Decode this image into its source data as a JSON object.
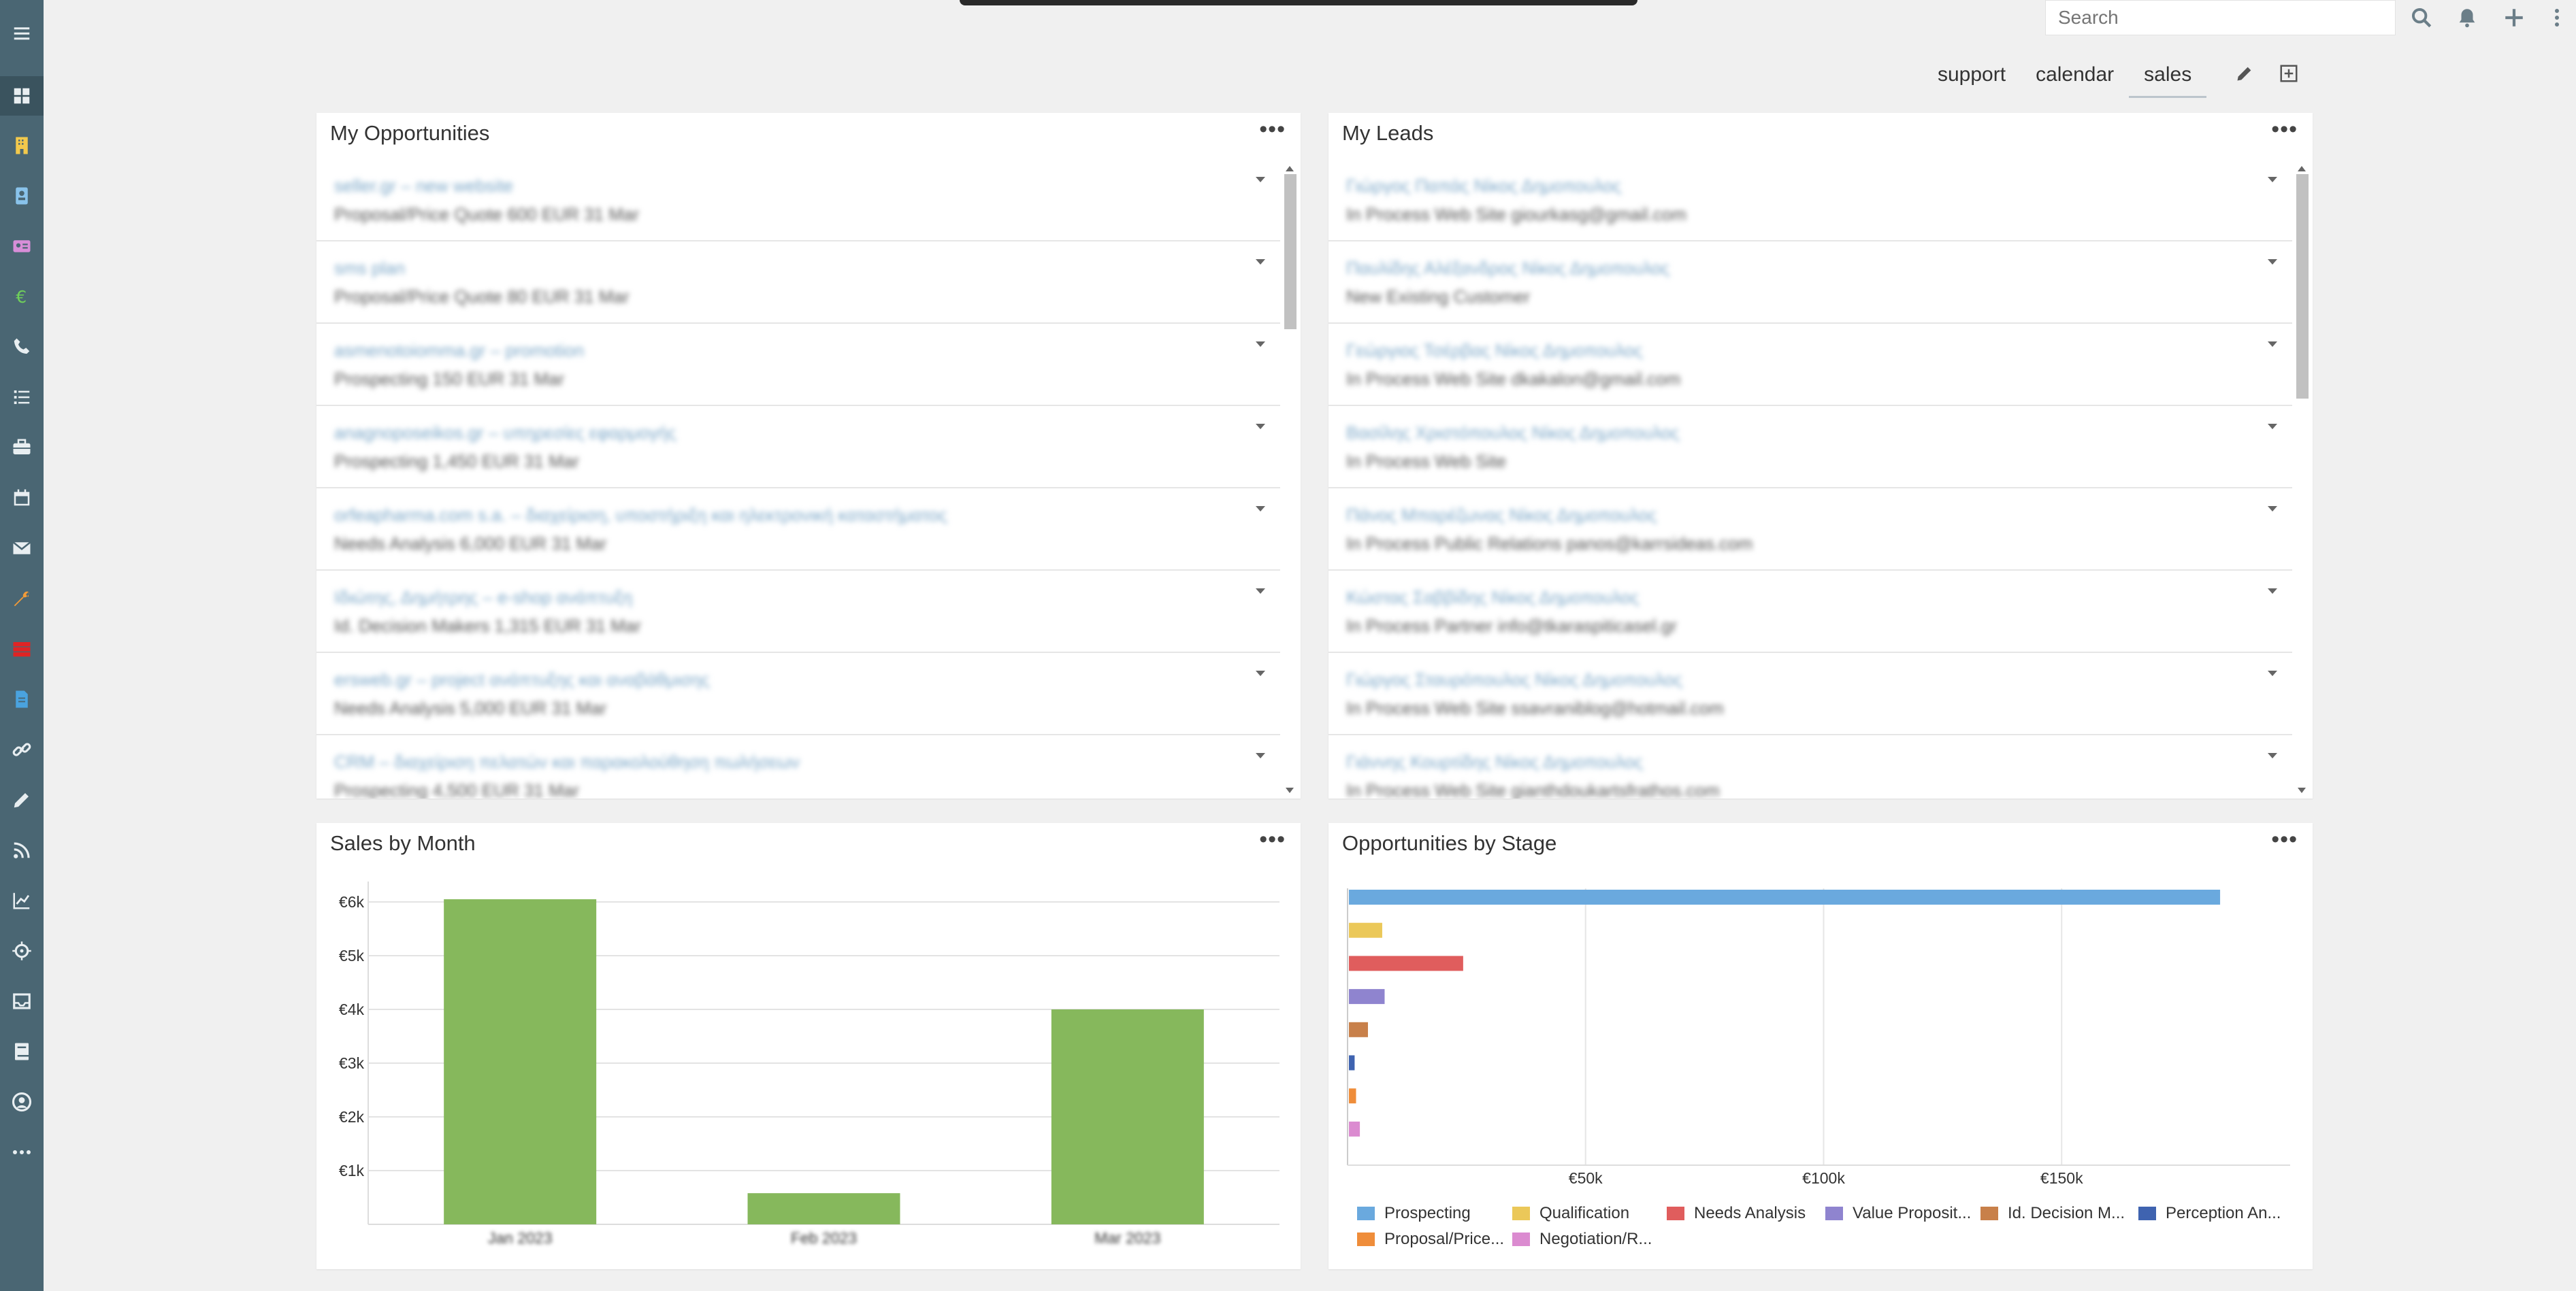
{
  "header": {
    "search_placeholder": "Search",
    "tabs": [
      {
        "label": "support"
      },
      {
        "label": "calendar"
      },
      {
        "label": "sales",
        "active": true
      }
    ]
  },
  "sidebar": {
    "icons": [
      "menu-icon",
      "dashboard-icon",
      "accounts-icon",
      "contacts-icon",
      "leads-icon",
      "opportunities-icon",
      "calls-icon",
      "tasks-icon",
      "cases-icon",
      "calendar-icon",
      "email-icon",
      "tools-icon",
      "stack-icon",
      "documents-icon",
      "link-icon",
      "pencil-icon",
      "feed-icon",
      "chart-icon",
      "target-icon",
      "inbox-icon",
      "book-icon",
      "user-icon",
      "more-icon"
    ],
    "colors": {
      "background": "#4a6673",
      "accounts": "#f2c94c",
      "euro": "#6fcf5a",
      "stack": "#e02424",
      "documents": "#4aa3df",
      "tools": "#f29b38",
      "contacts": "#89c3eb",
      "leads": "#d88ed8"
    }
  },
  "panels": {
    "opportunities": {
      "title": "My Opportunities",
      "rows": [
        {
          "name": "seller.gr – new website",
          "detail": "Proposal/Price Quote   600 EUR   31 Mar"
        },
        {
          "name": "sms plan",
          "detail": "Proposal/Price Quote   80 EUR   31 Mar"
        },
        {
          "name": "asmenotoiomma.gr – promotion",
          "detail": "Prospecting   150 EUR   31 Mar"
        },
        {
          "name": "anagnoposeikos.gr – υπηρεσίες εφαρμογής",
          "detail": "Prospecting   1,450 EUR   31 Mar"
        },
        {
          "name": "orfeapharma.com s.a. – διαχείριση, υποστήριξη και ηλεκτρονική καταστήματος",
          "detail": "Needs Analysis   6,000 EUR   31 Mar"
        },
        {
          "name": "Ιδιώτης, Δημήτρης – e-shop ανάπτυξη",
          "detail": "Id. Decision Makers   1,315 EUR   31 Mar"
        },
        {
          "name": "ersweb.gr – project ανάπτυξης και αναβάθμισης",
          "detail": "Needs Analysis   5,000 EUR   31 Mar"
        },
        {
          "name": "CRM – διαχείριση πελατών και παρακολούθηση πωλήσεων",
          "detail": "Prospecting   4,500 EUR   31 Mar"
        }
      ]
    },
    "leads": {
      "title": "My Leads",
      "rows": [
        {
          "name": "Γιώργος Παπάς    Νίκος Δημοπουλος",
          "detail": "In Process   Web Site   giourkasg@gmail.com"
        },
        {
          "name": "Παυλίδης Αλέξανδρος    Νίκος Δημοπουλος",
          "detail": "New   Existing Customer"
        },
        {
          "name": "Γεώργιος Τσέρβας    Νίκος Δημοπουλος",
          "detail": "In Process   Web Site   dkakalon@gmail.com"
        },
        {
          "name": "Βασίλης Χριστόπουλος    Νίκος Δημοπουλος",
          "detail": "In Process   Web Site"
        },
        {
          "name": "Πάνος Μπαρέζωνας    Νίκος Δημοπουλος",
          "detail": "In Process   Public Relations   panos@karrsideas.com"
        },
        {
          "name": "Κώστας Σαββίδης    Νίκος Δημοπουλος",
          "detail": "In Process   Partner   info@tkaraspiticasel.gr"
        },
        {
          "name": "Γιώργος Σταυρόπουλος    Νίκος Δημοπουλος",
          "detail": "In Process   Web Site   ssavraniblog@hotmail.com"
        },
        {
          "name": "Γιάννης Κουρτίδης    Νίκος Δημοπουλος",
          "detail": "In Process   Web Site   gianthdoukartsfrathos.com"
        }
      ]
    },
    "sales_by_month": {
      "title": "Sales by Month"
    },
    "opps_by_stage": {
      "title": "Opportunities by Stage"
    }
  },
  "chart_data": [
    {
      "type": "bar",
      "title": "Sales by Month",
      "categories": [
        "Jan 2023",
        "Feb 2023",
        "Mar 2023"
      ],
      "values": [
        6050,
        580,
        4000
      ],
      "ylim": [
        0,
        6000
      ],
      "yticks": [
        "€1k",
        "€2k",
        "€3k",
        "€4k",
        "€5k",
        "€6k"
      ],
      "tick_values": [
        1000,
        2000,
        3000,
        4000,
        5000,
        6000
      ],
      "color": "#86b85c",
      "grid": true
    },
    {
      "type": "bar",
      "orientation": "horizontal",
      "title": "Opportunities by Stage",
      "categories": [
        "Prospecting",
        "Qualification",
        "Needs Analysis",
        "Value Proposition",
        "Id. Decision Makers",
        "Perception Analysis",
        "Proposal/Price Quote",
        "Negotiation/Review"
      ],
      "legend_labels": [
        "Prospecting",
        "Qualification",
        "Needs Analysis",
        "Value Proposit...",
        "Id. Decision M...",
        "Perception An...",
        "Proposal/Price...",
        "Negotiation/R..."
      ],
      "values": [
        183000,
        7000,
        24000,
        7500,
        4000,
        1200,
        1500,
        2300
      ],
      "colors": [
        "#6aa9de",
        "#ebc859",
        "#e05d5d",
        "#8f84cf",
        "#c8804a",
        "#3f63b0",
        "#ef8d3a",
        "#db8bd0"
      ],
      "xlim": [
        0,
        198000
      ],
      "xticks": [
        "€50k",
        "€100k",
        "€150k"
      ],
      "tick_values": [
        50000,
        100000,
        150000
      ],
      "legend": "bottom",
      "grid": true
    }
  ]
}
